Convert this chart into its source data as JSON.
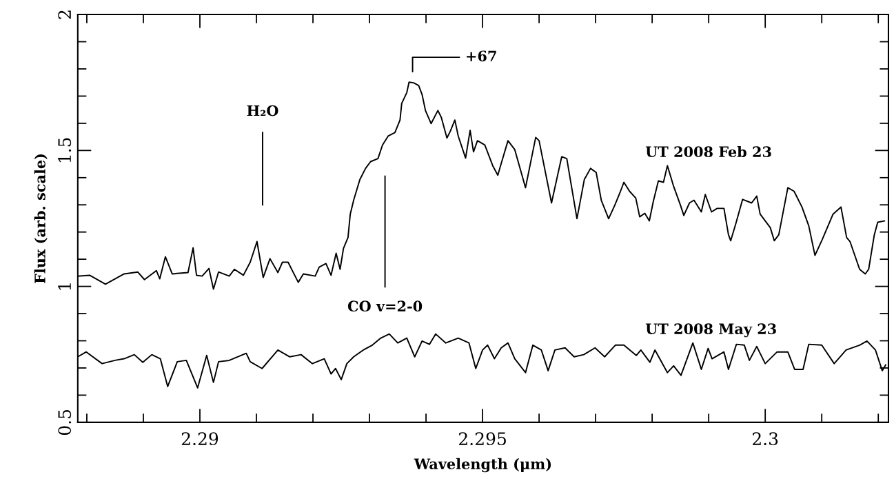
{
  "chart_data": {
    "type": "line",
    "xlabel": "Wavelength (μm)",
    "ylabel": "Flux (arb. scale)",
    "xlim": [
      2.28784,
      2.30218
    ],
    "ylim": [
      0.5,
      2
    ],
    "xticks": [
      {
        "value": 2.288,
        "label": null
      },
      {
        "value": 2.289,
        "label": null
      },
      2.29,
      {
        "value": 2.291,
        "label": null
      },
      {
        "value": 2.292,
        "label": null
      },
      {
        "value": 2.293,
        "label": null
      },
      {
        "value": 2.294,
        "label": null
      },
      2.295,
      {
        "value": 2.296,
        "label": null
      },
      {
        "value": 2.297,
        "label": null
      },
      {
        "value": 2.298,
        "label": null
      },
      {
        "value": 2.299,
        "label": null
      },
      2.3,
      {
        "value": 2.301,
        "label": null
      },
      {
        "value": 2.302,
        "label": null
      }
    ],
    "yticks": [
      0.5,
      {
        "value": 0.6,
        "label": null
      },
      {
        "value": 0.7,
        "label": null
      },
      {
        "value": 0.8,
        "label": null
      },
      {
        "value": 0.9,
        "label": null
      },
      1,
      {
        "value": 1.1,
        "label": null
      },
      {
        "value": 1.2,
        "label": null
      },
      {
        "value": 1.3,
        "label": null
      },
      {
        "value": 1.4,
        "label": null
      },
      1.5,
      {
        "value": 1.6,
        "label": null
      },
      {
        "value": 1.7,
        "label": null
      },
      {
        "value": 1.8,
        "label": null
      },
      {
        "value": 1.9,
        "label": null
      },
      2
    ],
    "grid": false,
    "legend": false,
    "marker": "none",
    "line_style": "solid",
    "series": [
      {
        "name": "UT 2008 Feb 23",
        "color": "#000000",
        "x": [
          2.28784,
          2.28805,
          2.28833,
          2.28866,
          2.2889,
          2.28902,
          2.28923,
          2.28929,
          2.28939,
          2.28951,
          2.28979,
          2.28988,
          2.28994,
          2.29004,
          2.29016,
          2.29024,
          2.29033,
          2.29052,
          2.29061,
          2.29077,
          2.29089,
          2.29101,
          2.29112,
          2.29124,
          2.29138,
          2.29146,
          2.29156,
          2.29174,
          2.29183,
          2.29204,
          2.29211,
          2.29223,
          2.29232,
          2.29241,
          2.29248,
          2.29254,
          2.29262,
          2.29266,
          2.29272,
          2.29283,
          2.29293,
          2.29302,
          2.29315,
          2.29323,
          2.29333,
          2.29345,
          2.29354,
          2.29357,
          2.29366,
          2.2937,
          2.29378,
          2.29387,
          2.29393,
          2.29399,
          2.29409,
          2.29421,
          2.29427,
          2.29437,
          2.29443,
          2.29451,
          2.29457,
          2.2947,
          2.29478,
          2.29484,
          2.29491,
          2.29504,
          2.29518,
          2.29527,
          2.29533,
          2.29545,
          2.29557,
          2.29576,
          2.29594,
          2.296,
          2.29622,
          2.2964,
          2.29649,
          2.29667,
          2.2968,
          2.29691,
          2.29701,
          2.2971,
          2.29723,
          2.29734,
          2.29744,
          2.2975,
          2.2976,
          2.29771,
          2.29778,
          2.29787,
          2.29795,
          2.29802,
          2.29811,
          2.2982,
          2.29827,
          2.29838,
          2.2985,
          2.29856,
          2.29866,
          2.29874,
          2.29887,
          2.29894,
          2.29905,
          2.29915,
          2.29927,
          2.29935,
          2.29939,
          2.29948,
          2.2996,
          2.29976,
          2.29985,
          2.29991,
          2.30009,
          2.30016,
          2.30024,
          2.3004,
          2.30051,
          2.30065,
          2.30077,
          2.30088,
          2.30101,
          2.3012,
          2.30134,
          2.30144,
          2.3015,
          2.30167,
          2.30177,
          2.30183,
          2.30193,
          2.30199,
          2.30211
        ],
        "values": [
          1.038,
          1.041,
          1.008,
          1.046,
          1.053,
          1.025,
          1.058,
          1.028,
          1.109,
          1.046,
          1.051,
          1.142,
          1.041,
          1.038,
          1.066,
          0.99,
          1.053,
          1.038,
          1.063,
          1.041,
          1.089,
          1.165,
          1.033,
          1.102,
          1.051,
          1.089,
          1.089,
          1.015,
          1.046,
          1.038,
          1.071,
          1.084,
          1.041,
          1.122,
          1.063,
          1.14,
          1.18,
          1.266,
          1.317,
          1.393,
          1.434,
          1.459,
          1.47,
          1.52,
          1.553,
          1.566,
          1.612,
          1.673,
          1.713,
          1.751,
          1.749,
          1.739,
          1.706,
          1.647,
          1.599,
          1.647,
          1.622,
          1.546,
          1.571,
          1.612,
          1.553,
          1.472,
          1.574,
          1.495,
          1.536,
          1.52,
          1.444,
          1.409,
          1.452,
          1.536,
          1.503,
          1.363,
          1.548,
          1.536,
          1.307,
          1.477,
          1.47,
          1.249,
          1.393,
          1.434,
          1.419,
          1.317,
          1.249,
          1.299,
          1.35,
          1.383,
          1.35,
          1.325,
          1.256,
          1.269,
          1.241,
          1.312,
          1.388,
          1.383,
          1.444,
          1.368,
          1.299,
          1.261,
          1.307,
          1.317,
          1.274,
          1.338,
          1.274,
          1.287,
          1.287,
          1.19,
          1.168,
          1.231,
          1.32,
          1.307,
          1.332,
          1.266,
          1.216,
          1.168,
          1.19,
          1.363,
          1.35,
          1.292,
          1.223,
          1.114,
          1.173,
          1.266,
          1.292,
          1.18,
          1.165,
          1.063,
          1.046,
          1.063,
          1.19,
          1.236,
          1.241
        ]
      },
      {
        "name": "UT 2008 May 23",
        "color": "#000000",
        "x": [
          2.28784,
          2.28799,
          2.28827,
          2.2885,
          2.28866,
          2.28884,
          2.28899,
          2.28915,
          2.2893,
          2.28943,
          2.2896,
          2.28976,
          2.28996,
          2.29012,
          2.29024,
          2.29033,
          2.29052,
          2.29082,
          2.29089,
          2.2911,
          2.29138,
          2.29159,
          2.29179,
          2.29199,
          2.2922,
          2.29232,
          2.2924,
          2.2925,
          2.2926,
          2.29272,
          2.29289,
          2.29305,
          2.2932,
          2.29335,
          2.2935,
          2.29366,
          2.2938,
          2.29393,
          2.29406,
          2.29417,
          2.29435,
          2.29457,
          2.29476,
          2.29488,
          2.295,
          2.29509,
          2.29521,
          2.29533,
          2.29545,
          2.29557,
          2.29576,
          2.29589,
          2.29604,
          2.29616,
          2.29628,
          2.29646,
          2.29662,
          2.29679,
          2.29699,
          2.29716,
          2.29735,
          2.2975,
          2.29772,
          2.2978,
          2.29796,
          2.29805,
          2.29827,
          2.29838,
          2.29851,
          2.29872,
          2.29887,
          2.29899,
          2.29906,
          2.29927,
          2.29935,
          2.29949,
          2.29963,
          2.29972,
          2.29985,
          2.3,
          2.30021,
          2.3004,
          2.30052,
          2.30067,
          2.30077,
          2.301,
          2.30122,
          2.30143,
          2.30167,
          2.3018,
          2.30195,
          2.30207,
          2.30213
        ],
        "values": [
          0.741,
          0.759,
          0.716,
          0.728,
          0.734,
          0.749,
          0.721,
          0.749,
          0.734,
          0.632,
          0.723,
          0.728,
          0.627,
          0.746,
          0.647,
          0.723,
          0.728,
          0.754,
          0.723,
          0.698,
          0.766,
          0.741,
          0.749,
          0.716,
          0.734,
          0.678,
          0.698,
          0.657,
          0.716,
          0.741,
          0.766,
          0.784,
          0.81,
          0.825,
          0.792,
          0.81,
          0.741,
          0.799,
          0.787,
          0.825,
          0.792,
          0.81,
          0.792,
          0.698,
          0.766,
          0.784,
          0.734,
          0.774,
          0.792,
          0.734,
          0.683,
          0.784,
          0.766,
          0.69,
          0.766,
          0.774,
          0.741,
          0.749,
          0.774,
          0.741,
          0.784,
          0.784,
          0.746,
          0.766,
          0.721,
          0.766,
          0.683,
          0.708,
          0.673,
          0.792,
          0.695,
          0.772,
          0.734,
          0.759,
          0.695,
          0.787,
          0.784,
          0.728,
          0.779,
          0.716,
          0.759,
          0.759,
          0.695,
          0.695,
          0.787,
          0.784,
          0.716,
          0.766,
          0.784,
          0.799,
          0.766,
          0.69,
          0.711
        ]
      }
    ],
    "annotations": [
      "H₂O",
      "CO v=2-0",
      "+67"
    ]
  }
}
